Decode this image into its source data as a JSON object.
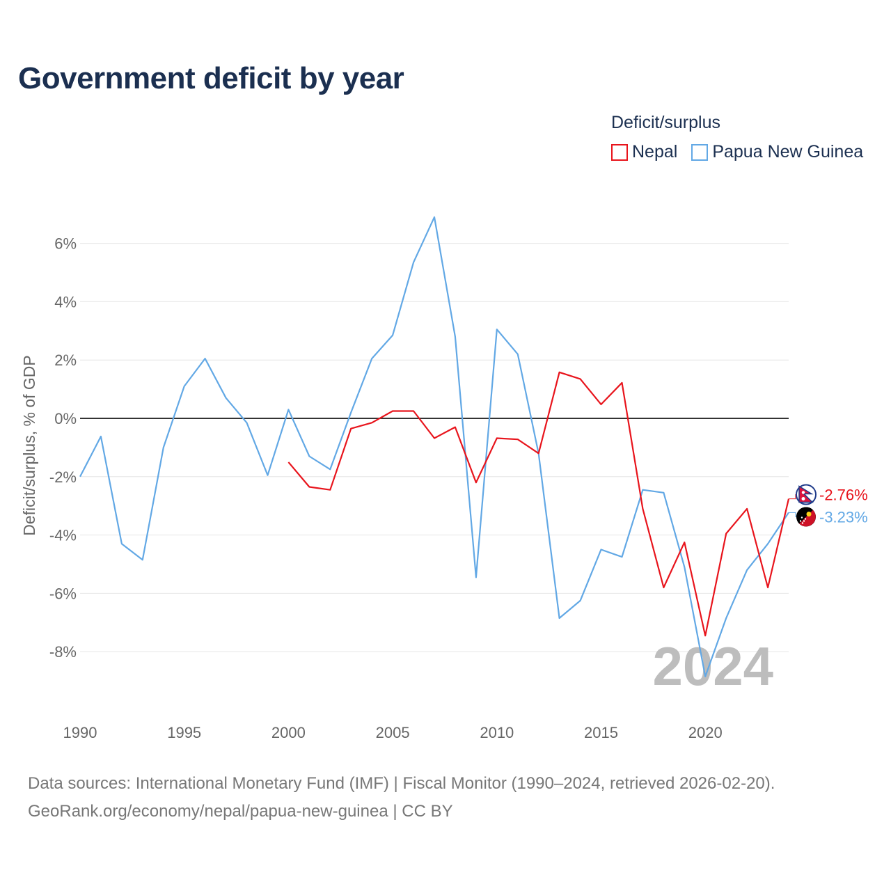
{
  "title": "Government deficit by year",
  "legend": {
    "title": "Deficit/surplus",
    "items": [
      {
        "label": "Nepal",
        "color": "#e8141c"
      },
      {
        "label": "Papua New Guinea",
        "color": "#62a8e5"
      }
    ]
  },
  "footer": {
    "line1": "Data sources: International Monetary Fund (IMF) | Fiscal Monitor (1990–2024, retrieved 2026-02-20).",
    "line2": "GeoRank.org/economy/nepal/papua-new-guinea | CC BY"
  },
  "chart_data": {
    "type": "line",
    "title": "Government deficit by year",
    "xlabel": "",
    "ylabel": "Deficit/surplus, % of GDP",
    "xlim": [
      1990,
      2024
    ],
    "ylim": [
      -10,
      7
    ],
    "xticks": [
      1990,
      1995,
      2000,
      2005,
      2010,
      2015,
      2020
    ],
    "yticks": [
      6,
      4,
      2,
      0,
      -2,
      -4,
      -6,
      -8
    ],
    "ytick_labels": [
      "6%",
      "4%",
      "2%",
      "0%",
      "-2%",
      "-4%",
      "-6%",
      "-8%"
    ],
    "year_watermark": "2024",
    "series": [
      {
        "name": "Papua New Guinea",
        "color": "#62a8e5",
        "end_label": "-3.23%",
        "flag_icon": "papua-new-guinea-flag-icon",
        "x": [
          1990,
          1991,
          1992,
          1993,
          1994,
          1995,
          1996,
          1997,
          1998,
          1999,
          2000,
          2001,
          2002,
          2003,
          2004,
          2005,
          2006,
          2007,
          2008,
          2009,
          2010,
          2011,
          2012,
          2013,
          2014,
          2015,
          2016,
          2017,
          2018,
          2019,
          2020,
          2021,
          2022,
          2023,
          2024
        ],
        "values": [
          -2.0,
          -0.62,
          -4.3,
          -4.85,
          -1.0,
          1.1,
          2.05,
          0.7,
          -0.15,
          -1.95,
          0.3,
          -1.3,
          -1.75,
          0.2,
          2.05,
          2.85,
          5.35,
          6.9,
          2.8,
          -5.45,
          3.05,
          2.2,
          -1.2,
          -6.85,
          -6.25,
          -4.5,
          -4.75,
          -2.45,
          -2.55,
          -5.1,
          -8.85,
          -6.85,
          -5.2,
          -4.3,
          -3.23
        ]
      },
      {
        "name": "Nepal",
        "color": "#e8141c",
        "end_label": "-2.76%",
        "flag_icon": "nepal-flag-icon",
        "x": [
          2000,
          2001,
          2002,
          2003,
          2004,
          2005,
          2006,
          2007,
          2008,
          2009,
          2010,
          2011,
          2012,
          2013,
          2014,
          2015,
          2016,
          2017,
          2018,
          2019,
          2020,
          2021,
          2022,
          2023,
          2024
        ],
        "values": [
          -1.5,
          -2.35,
          -2.45,
          -0.35,
          -0.15,
          0.25,
          0.25,
          -0.68,
          -0.3,
          -2.2,
          -0.68,
          -0.72,
          -1.2,
          1.58,
          1.35,
          0.48,
          1.22,
          -3.1,
          -5.8,
          -4.25,
          -7.45,
          -3.95,
          -3.1,
          -5.8,
          -2.76
        ]
      }
    ]
  }
}
